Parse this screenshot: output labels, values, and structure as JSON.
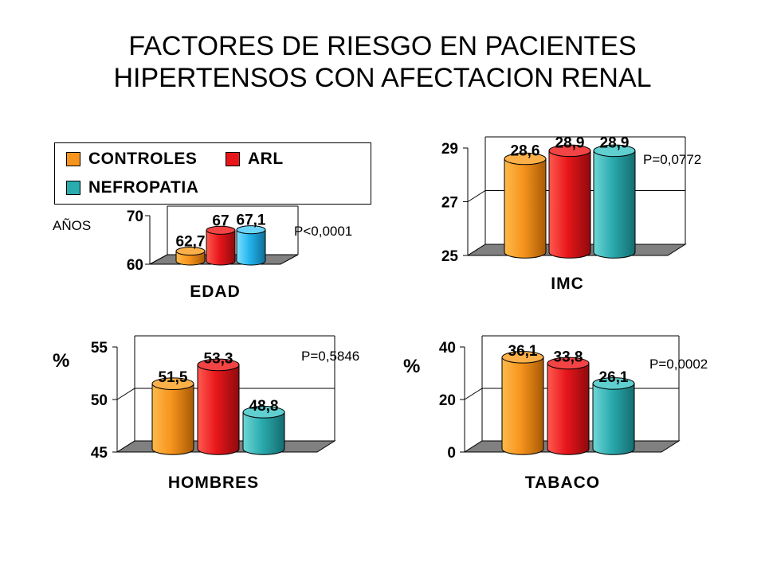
{
  "title_line1": "FACTORES DE RIESGO EN PACIENTES",
  "title_line2": "HIPERTENSOS CON AFECTACION RENAL",
  "legend": [
    {
      "label": "CONTROLES",
      "color": "#F7941D"
    },
    {
      "label": "ARL",
      "color": "#E8161B"
    },
    {
      "label": "NEFROPATIA",
      "color": "#2AABAE"
    }
  ],
  "chart_data": [
    {
      "type": "bar",
      "xlabel": "EDAD",
      "ylabel": "AÑOS",
      "annotation": "P<0,0001",
      "ylim": [
        60,
        70
      ],
      "yticks": [
        "60",
        "70"
      ],
      "categories": [
        "CONTROLES",
        "ARL",
        "NEFROPATIA"
      ],
      "values": [
        62.7,
        67,
        67.1
      ],
      "data_labels": [
        "62,7",
        "67",
        "67,1"
      ]
    },
    {
      "type": "bar",
      "xlabel": "IMC",
      "ylabel": "",
      "annotation": "P=0,0772",
      "ylim": [
        25,
        29
      ],
      "yticks": [
        "25",
        "27",
        "29"
      ],
      "categories": [
        "CONTROLES",
        "ARL",
        "NEFROPATIA"
      ],
      "values": [
        28.6,
        28.9,
        28.9
      ],
      "data_labels": [
        "28,6",
        "28,9",
        "28,9"
      ]
    },
    {
      "type": "bar",
      "xlabel": "HOMBRES",
      "ylabel": "%",
      "annotation": "P=0,5846",
      "ylim": [
        45,
        55
      ],
      "yticks": [
        "45",
        "50",
        "55"
      ],
      "categories": [
        "CONTROLES",
        "ARL",
        "NEFROPATIA"
      ],
      "values": [
        51.5,
        53.3,
        48.8
      ],
      "data_labels": [
        "51,5",
        "53,3",
        "48,8"
      ]
    },
    {
      "type": "bar",
      "xlabel": "TABACO",
      "ylabel": "%",
      "annotation": "P=0,0002",
      "ylim": [
        0,
        40
      ],
      "yticks": [
        "0",
        "20",
        "40"
      ],
      "categories": [
        "CONTROLES",
        "ARL",
        "NEFROPATIA"
      ],
      "values": [
        36.1,
        33.8,
        26.1
      ],
      "data_labels": [
        "36,1",
        "33,8",
        "26,1"
      ]
    }
  ]
}
